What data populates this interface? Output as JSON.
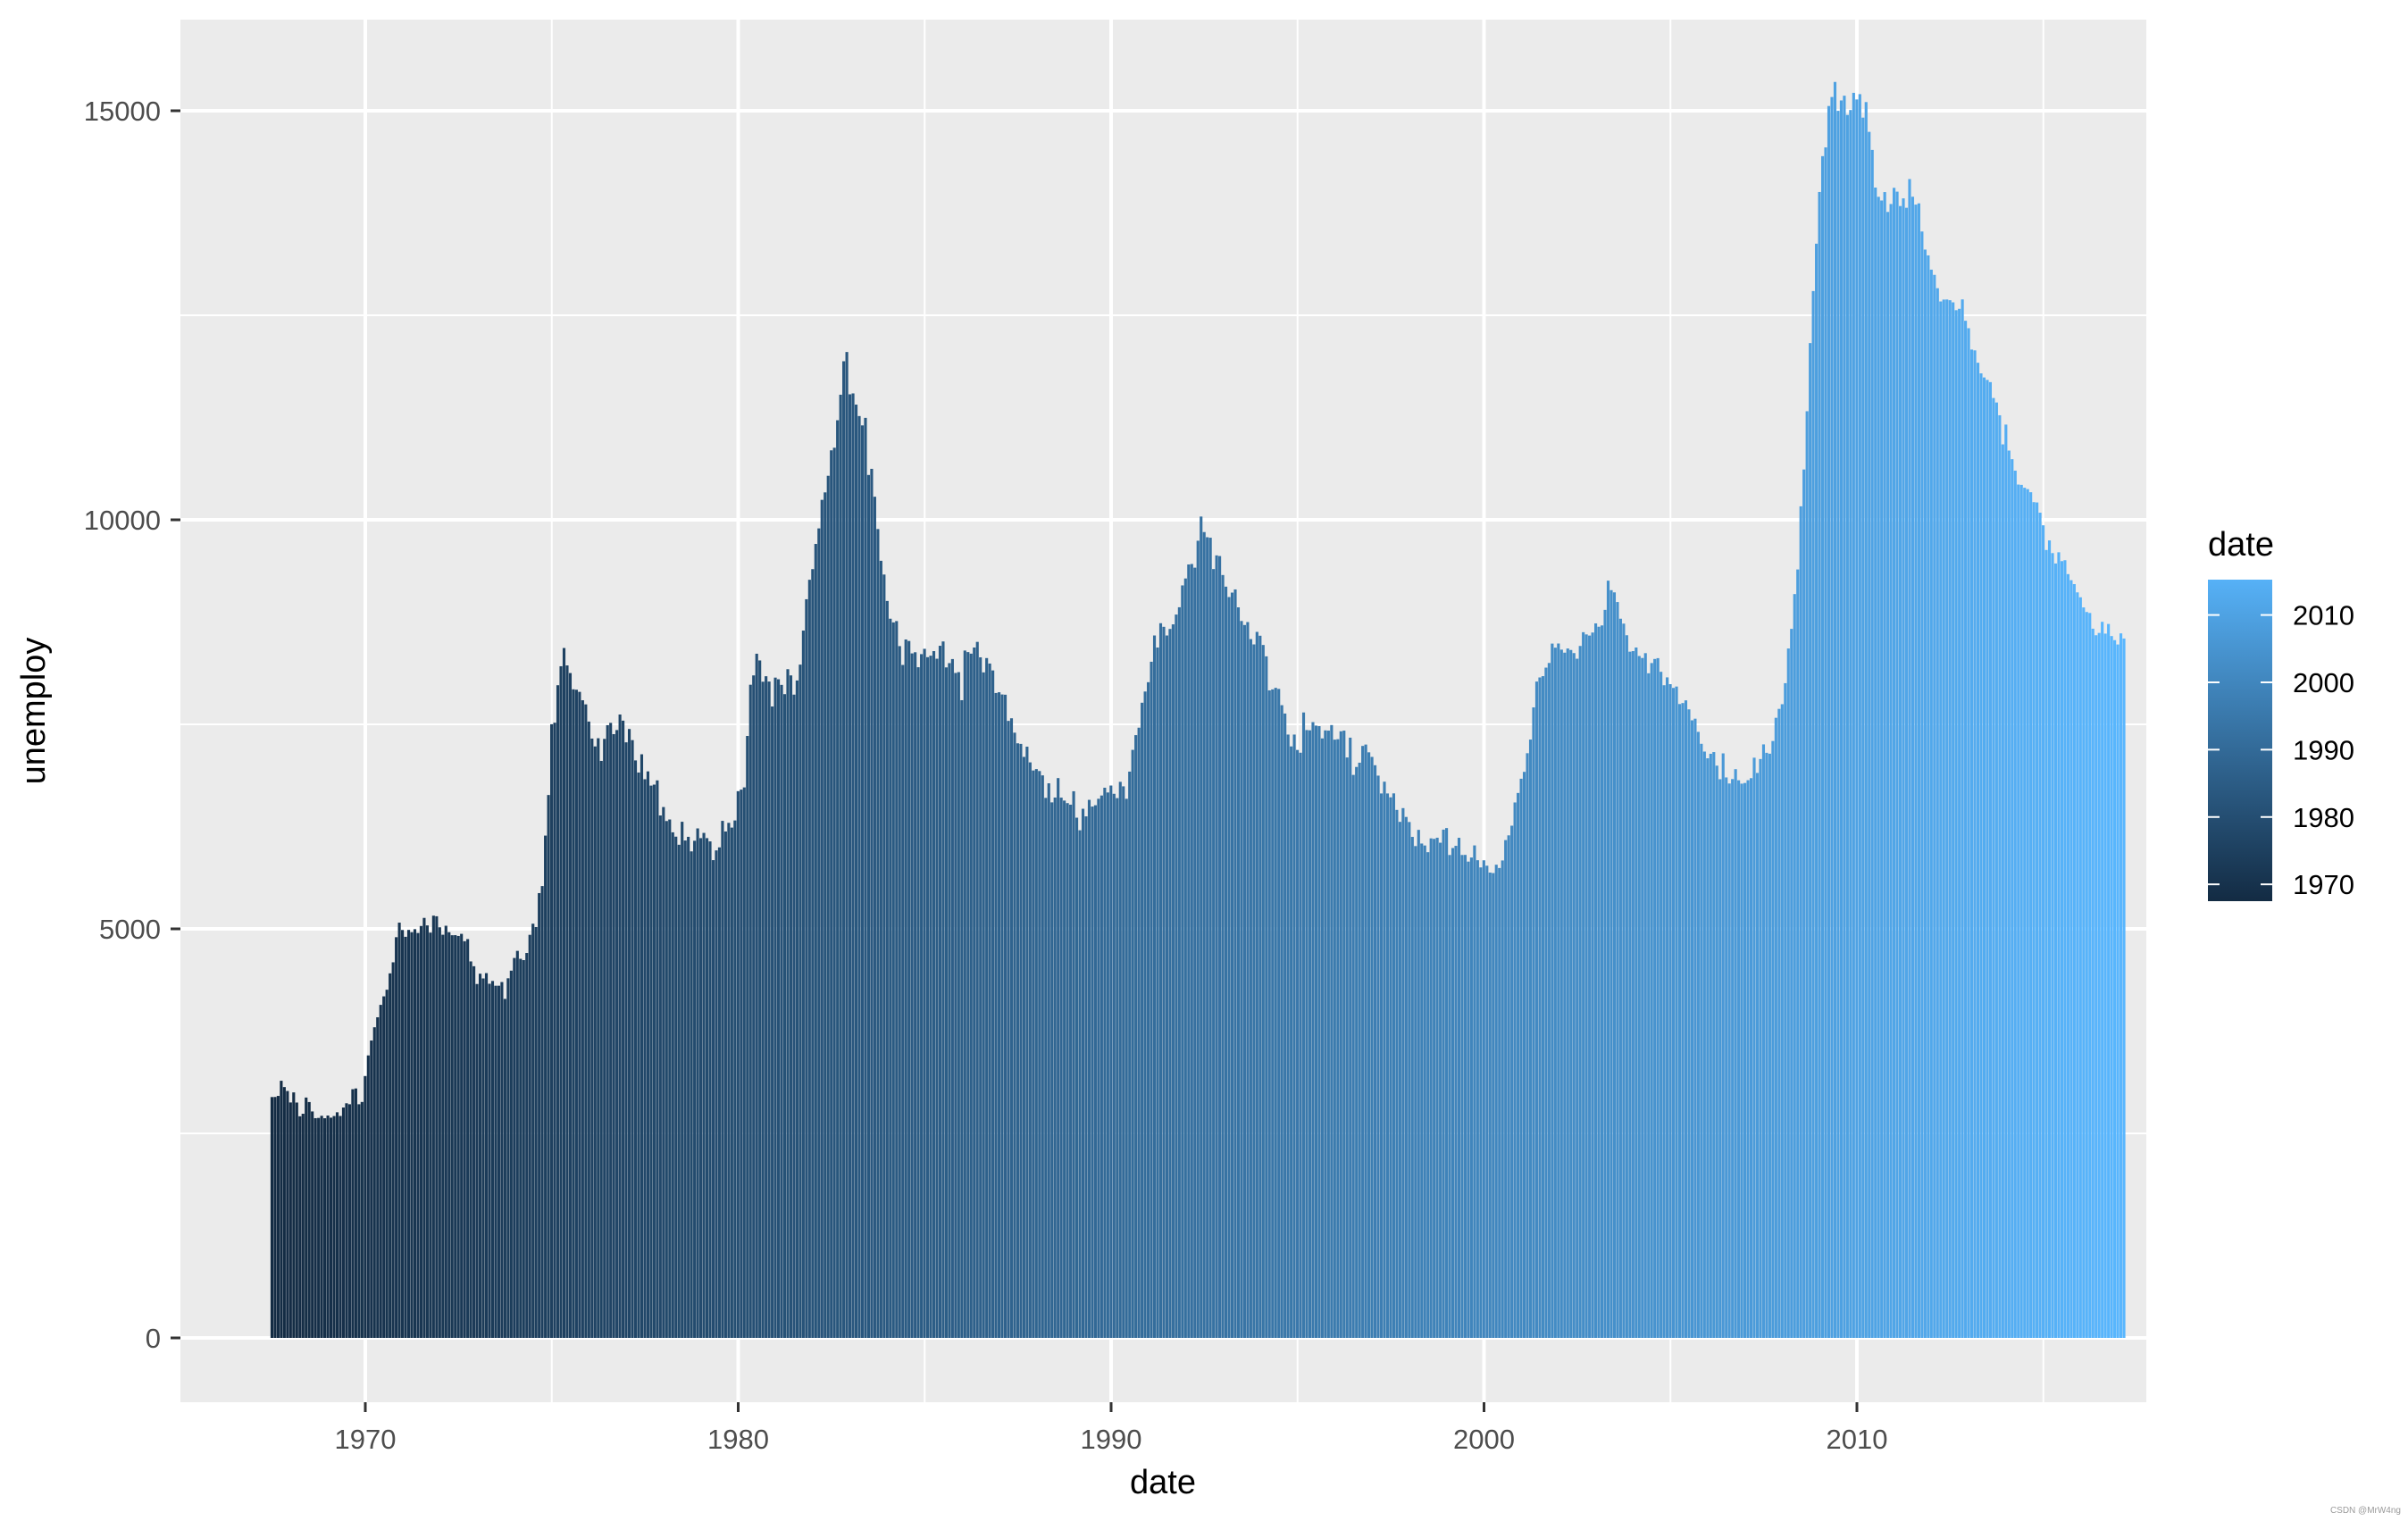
{
  "chart_data": {
    "type": "bar",
    "title": "",
    "xlabel": "date",
    "ylabel": "unemploy",
    "x_range": [
      1965.1,
      2017.8
    ],
    "ylim": [
      -1400,
      16200
    ],
    "grid": true,
    "x_ticks": [
      1970,
      1980,
      1990,
      2000,
      2010
    ],
    "x_tick_labels": [
      "1970",
      "1980",
      "1990",
      "2000",
      "2010"
    ],
    "y_ticks": [
      0,
      5000,
      10000,
      15000
    ],
    "y_tick_labels": [
      "0",
      "5000",
      "10000",
      "15000"
    ],
    "y_minor_ticks": [
      2500,
      7500,
      12500
    ],
    "x_minor_ticks": [
      1975,
      1985,
      1995,
      2005,
      2015
    ],
    "legend": {
      "title": "date",
      "position": "right",
      "type": "colorbar",
      "labels": [
        "2010",
        "2000",
        "1990",
        "1980",
        "1970"
      ],
      "values": [
        2010,
        2000,
        1990,
        1980,
        1970
      ],
      "low_color": "#132B43",
      "high_color": "#56B1F7"
    },
    "x_start": 1967.5,
    "x_step_months": 1,
    "series": [
      {
        "name": "unemploy",
        "start": "1967-07",
        "end": "2015-04",
        "values": [
          2944,
          2945,
          2958,
          3143,
          3066,
          3018,
          2878,
          3001,
          2877,
          2709,
          2740,
          2938,
          2883,
          2768,
          2686,
          2689,
          2715,
          2685,
          2718,
          2692,
          2712,
          2758,
          2713,
          2816,
          2868,
          2856,
          3040,
          3049,
          2856,
          2884,
          3201,
          3453,
          3635,
          3797,
          3919,
          4071,
          4175,
          4256,
          4456,
          4591,
          4898,
          5076,
          4986,
          4903,
          4987,
          4959,
          4996,
          4949,
          5035,
          5134,
          5042,
          4954,
          5161,
          5154,
          5019,
          4928,
          5038,
          4959,
          4922,
          4923,
          4913,
          4939,
          4849,
          4875,
          4602,
          4543,
          4326,
          4452,
          4394,
          4459,
          4329,
          4363,
          4305,
          4305,
          4350,
          4144,
          4396,
          4489,
          4644,
          4731,
          4634,
          4618,
          4705,
          4927,
          5063,
          5022,
          5437,
          5523,
          6140,
          6636,
          7501,
          7520,
          7978,
          8210,
          8433,
          8220,
          8127,
          7928,
          7923,
          7897,
          7794,
          7744,
          7534,
          7326,
          7230,
          7330,
          7053,
          7322,
          7490,
          7518,
          7380,
          7430,
          7620,
          7545,
          7280,
          7443,
          7307,
          7059,
          6911,
          7134,
          6829,
          6925,
          6751,
          6763,
          6815,
          6386,
          6489,
          6318,
          6337,
          6180,
          6127,
          6028,
          6309,
          6080,
          6125,
          5947,
          6077,
          6228,
          6109,
          6173,
          6109,
          6069,
          5840,
          5959,
          5996,
          6320,
          6190,
          6296,
          6238,
          6325,
          6683,
          6702,
          6729,
          7358,
          7984,
          8098,
          8363,
          8281,
          8021,
          8088,
          8023,
          7718,
          8071,
          8051,
          7982,
          7869,
          8174,
          8098,
          7863,
          8036,
          8230,
          8646,
          9029,
          9267,
          9397,
          9705,
          9895,
          10244,
          10335,
          10538,
          10849,
          10881,
          11217,
          11529,
          11938,
          12051,
          11534,
          11545,
          11408,
          11268,
          11154,
          11246,
          10548,
          10623,
          10282,
          9887,
          9499,
          9331,
          9008,
          8791,
          8746,
          8762,
          8456,
          8226,
          8537,
          8519,
          8367,
          8381,
          8198,
          8358,
          8423,
          8321,
          8339,
          8395,
          8302,
          8460,
          8513,
          8196,
          8248,
          8298,
          8128,
          8138,
          7795,
          8402,
          8383,
          8364,
          8439,
          8508,
          8319,
          8135,
          8310,
          8243,
          8159,
          7883,
          7892,
          7865,
          7862,
          7542,
          7574,
          7398,
          7268,
          7261,
          7102,
          7227,
          7035,
          6936,
          6953,
          6929,
          6876,
          6601,
          6779,
          6546,
          6605,
          6843,
          6604,
          6568,
          6537,
          6518,
          6682,
          6359,
          6205,
          6468,
          6375,
          6577,
          6495,
          6511,
          6590,
          6630,
          6725,
          6667,
          6752,
          6651,
          6598,
          6797,
          6742,
          6590,
          6922,
          7188,
          7368,
          7459,
          7764,
          7901,
          8015,
          8265,
          8586,
          8439,
          8736,
          8692,
          8586,
          8666,
          8722,
          8842,
          8931,
          9198,
          9283,
          9454,
          9460,
          9415,
          9744,
          10040,
          9850,
          9787,
          9781,
          9398,
          9565,
          9557,
          9325,
          9183,
          9056,
          9110,
          9149,
          8930,
          8763,
          8714,
          8750,
          8542,
          8477,
          8630,
          8583,
          8470,
          8331,
          7915,
          7927,
          7946,
          7933,
          7734,
          7632,
          7375,
          7230,
          7375,
          7187,
          7153,
          7645,
          7430,
          7427,
          7527,
          7484,
          7478,
          7328,
          7426,
          7423,
          7491,
          7313,
          7318,
          7415,
          7423,
          7095,
          7337,
          6882,
          6979,
          7031,
          7236,
          7253,
          7158,
          7102,
          7000,
          6873,
          6655,
          6799,
          6655,
          6608,
          6656,
          6454,
          6308,
          6476,
          6368,
          6306,
          6124,
          6012,
          6210,
          6043,
          6019,
          5937,
          6106,
          6100,
          6114,
          6053,
          6213,
          6232,
          5903,
          5988,
          6015,
          6113,
          5903,
          5904,
          5822,
          5872,
          6020,
          5839,
          5751,
          5838,
          5772,
          5688,
          5682,
          5784,
          5744,
          5836,
          6085,
          6143,
          6261,
          6545,
          6661,
          6835,
          6919,
          7147,
          7314,
          7707,
          8023,
          8073,
          8089,
          8193,
          8250,
          8487,
          8437,
          8488,
          8413,
          8376,
          8427,
          8409,
          8371,
          8302,
          8458,
          8626,
          8599,
          8585,
          8622,
          8734,
          8693,
          8709,
          8899,
          9256,
          9140,
          9113,
          8995,
          8791,
          8731,
          8589,
          8388,
          8395,
          8439,
          8335,
          8311,
          8370,
          8124,
          8249,
          8299,
          8309,
          8142,
          7978,
          8074,
          7991,
          7945,
          7962,
          7748,
          7760,
          7793,
          7683,
          7549,
          7569,
          7408,
          7262,
          7167,
          7085,
          7140,
          7161,
          6995,
          6829,
          7145,
          6851,
          6777,
          6831,
          6952,
          6816,
          6775,
          6783,
          6817,
          6842,
          7092,
          6906,
          7076,
          7255,
          7152,
          7141,
          7296,
          7580,
          7689,
          7746,
          8003,
          8427,
          8667,
          9092,
          9393,
          10165,
          10615,
          11327,
          12160,
          12796,
          13375,
          14007,
          14445,
          14552,
          15058,
          15168,
          15352,
          14999,
          15126,
          15184,
          14949,
          15009,
          15219,
          15138,
          15203,
          14916,
          15106,
          14742,
          14521,
          14061,
          13948,
          13903,
          14006,
          13763,
          13860,
          14058,
          14011,
          13835,
          13929,
          13814,
          14165,
          13949,
          13853,
          13868,
          13524,
          13303,
          13232,
          13058,
          12994,
          12831,
          12669,
          12692,
          12693,
          12684,
          12658,
          12562,
          12579,
          12694,
          12433,
          12342,
          12081,
          12071,
          11920,
          11790,
          11740,
          11710,
          11683,
          11489,
          11434,
          11278,
          10922,
          11164,
          10846,
          10741,
          10601,
          10431,
          10427,
          10392,
          10375,
          10337,
          10216,
          10212,
          10087,
          9933,
          9631,
          9748,
          9593,
          9466,
          9603,
          9495,
          9506,
          9336,
          9262,
          9214,
          9113,
          9053,
          8929,
          8873,
          8861,
          8669,
          8589,
          8617,
          8753,
          8609,
          8727,
          8579,
          8529,
          8476,
          8612,
          8549
        ]
      }
    ]
  },
  "watermark": "CSDN @MrW4ng"
}
